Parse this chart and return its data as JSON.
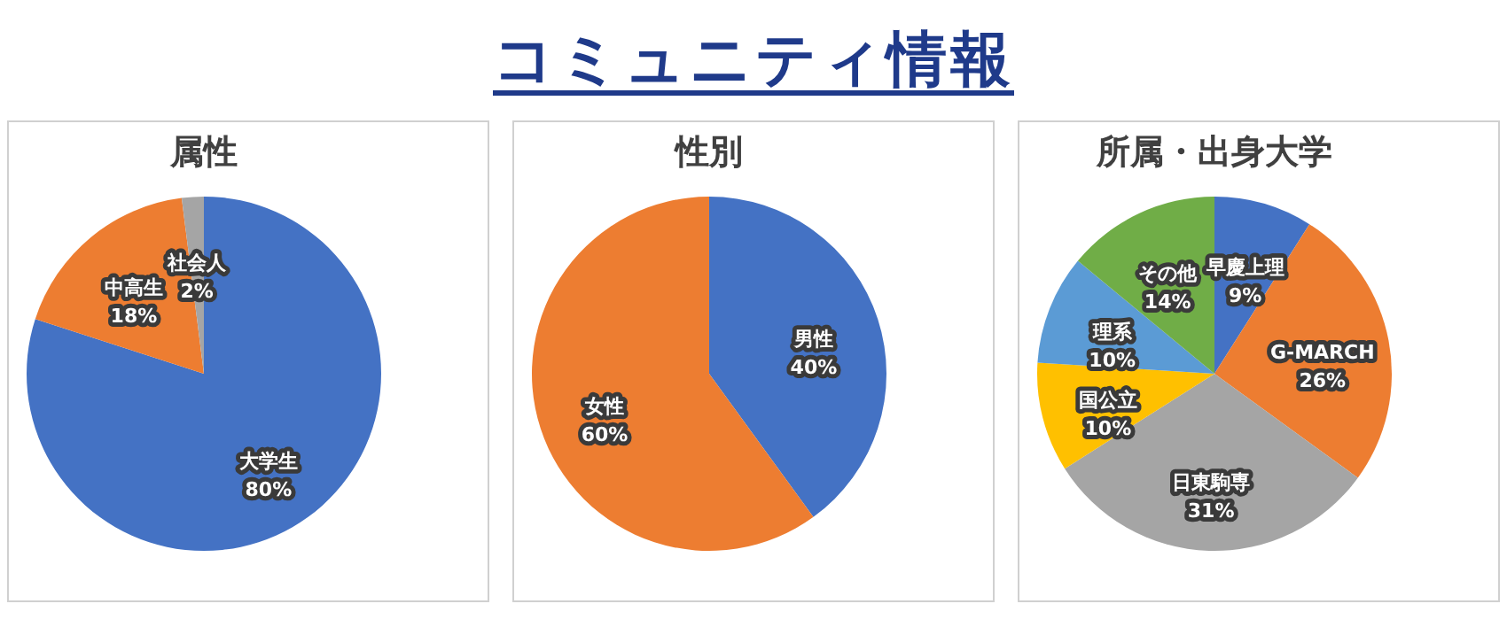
{
  "chart_data": [
    {
      "type": "other",
      "title": "コミュニティ情報"
    },
    {
      "type": "pie",
      "title": "属性",
      "categories": [
        "大学生",
        "中高生",
        "社会人"
      ],
      "values": [
        80,
        18,
        2
      ],
      "value_labels": [
        "80%",
        "18%",
        "2%"
      ],
      "colors": [
        "#4472c4",
        "#ed7d31",
        "#a5a5a5"
      ]
    },
    {
      "type": "pie",
      "title": "性別",
      "categories": [
        "男性",
        "女性"
      ],
      "values": [
        40,
        60
      ],
      "value_labels": [
        "40%",
        "60%"
      ],
      "colors": [
        "#4472c4",
        "#ed7d31"
      ]
    },
    {
      "type": "pie",
      "title": "所属・出身大学",
      "categories": [
        "早慶上理",
        "G-MARCH",
        "日東駒専",
        "国公立",
        "理系",
        "その他"
      ],
      "values": [
        9,
        26,
        31,
        10,
        10,
        14
      ],
      "value_labels": [
        "9%",
        "26%",
        "31%",
        "10%",
        "10%",
        "14%"
      ],
      "colors": [
        "#4472c4",
        "#ed7d31",
        "#a5a5a5",
        "#ffc000",
        "#5b9bd5",
        "#70ad47"
      ]
    }
  ]
}
